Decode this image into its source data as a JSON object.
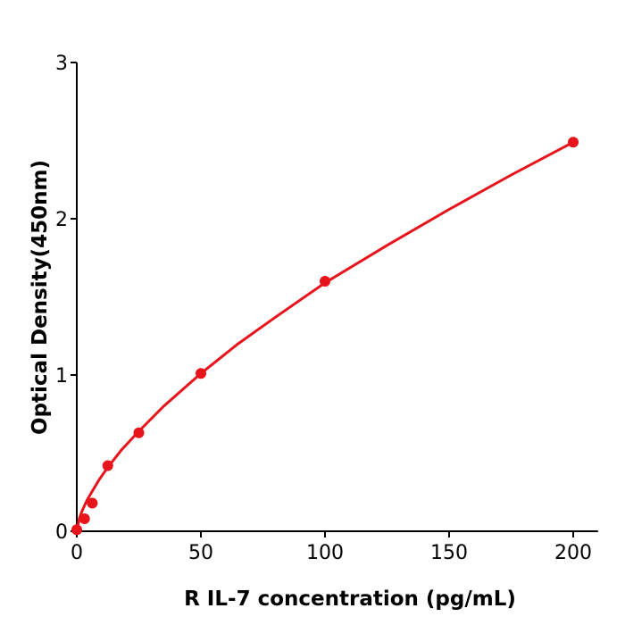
{
  "chart_data": {
    "type": "scatter",
    "title": "",
    "xlabel": "R  IL-7 concentration (pg/mL)",
    "ylabel": "Optical Density(450nm)",
    "xlim": [
      0,
      210
    ],
    "ylim": [
      0,
      3
    ],
    "xticks": [
      0,
      50,
      100,
      150,
      200
    ],
    "yticks": [
      0,
      1,
      2,
      3
    ],
    "xtick_labels": [
      "0",
      "50",
      "100",
      "150",
      "200"
    ],
    "ytick_labels": [
      "0",
      "1",
      "2",
      "3"
    ],
    "grid": false,
    "color": "#e8141c",
    "points": [
      {
        "x": 0,
        "y": 0.01
      },
      {
        "x": 3.125,
        "y": 0.08
      },
      {
        "x": 6.25,
        "y": 0.18
      },
      {
        "x": 12.5,
        "y": 0.42
      },
      {
        "x": 25,
        "y": 0.63
      },
      {
        "x": 50,
        "y": 1.01
      },
      {
        "x": 100,
        "y": 1.6
      },
      {
        "x": 200,
        "y": 2.49
      }
    ],
    "fit_curve": {
      "x": [
        0,
        1,
        2,
        4,
        6,
        9,
        12.5,
        18,
        25,
        35,
        50,
        65,
        80,
        100,
        125,
        150,
        175,
        200
      ],
      "y": [
        0,
        0.08,
        0.125,
        0.195,
        0.25,
        0.33,
        0.41,
        0.52,
        0.64,
        0.8,
        1.01,
        1.2,
        1.37,
        1.59,
        1.83,
        2.06,
        2.28,
        2.49
      ]
    }
  }
}
